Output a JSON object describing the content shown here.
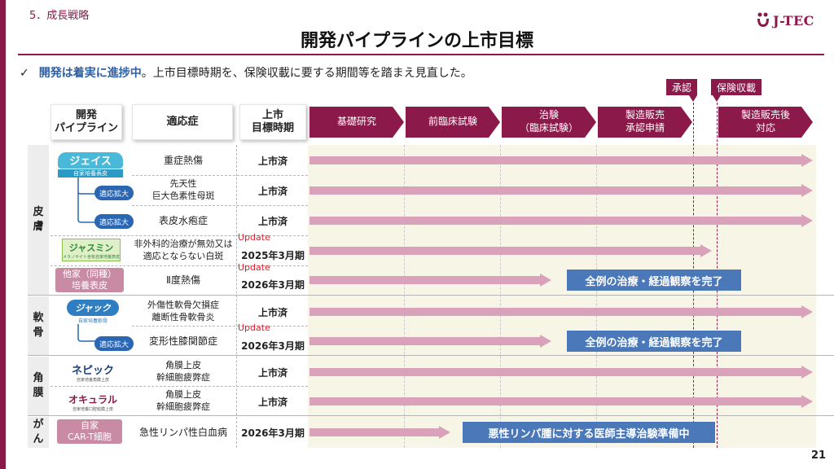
{
  "section": "5．成長戦略",
  "logo": "J-TEC",
  "title": "開発パイプラインの上市目標",
  "summary": {
    "check": "✓",
    "highlight": "開発は着実に進捗中",
    "rest": "。上市目標時期を、保険収載に要する期間等を踏まえ見直した。"
  },
  "callouts": {
    "approval": "承認",
    "insurance": "保険収載"
  },
  "headers": {
    "pipeline": "開発\nパイプライン",
    "indication": "適応症",
    "target": "上市\n目標時期"
  },
  "phases": [
    "基礎研究",
    "前臨床試験",
    "治験\n（臨床試験）",
    "製造販売\n承認申請",
    "製造販売後\n対応"
  ],
  "categories": [
    "皮\n膚",
    "軟\n骨",
    "角\n膜",
    "が\nん"
  ],
  "products": {
    "jace": "ジェイス",
    "jace_sub": "自家培養表皮",
    "jasmine": "ジャスミン",
    "jasmine_sub": "メラノサイト含有自家培養表皮",
    "other_epidermis": "他家（同種）\n培養表皮",
    "jack": "ジャック",
    "jack_sub": "自家培養軟骨",
    "nepic": "ネピック",
    "nepic_sub": "自家培養角膜上皮",
    "ocural": "オキュラル",
    "ocural_sub": "自家培養口腔粘膜上皮",
    "cart": "自家\nCAR-T細胞"
  },
  "expansion_label": "適応拡大",
  "rows": [
    {
      "indication": "重症熱傷",
      "target": "上市済",
      "update": "",
      "progress": 1.0,
      "status": ""
    },
    {
      "indication": "先天性\n巨大色素性母斑",
      "target": "上市済",
      "update": "",
      "progress": 1.0,
      "status": ""
    },
    {
      "indication": "表皮水疱症",
      "target": "上市済",
      "update": "",
      "progress": 1.0,
      "status": ""
    },
    {
      "indication": "非外科的治療が無効又は\n適応とならない白斑",
      "target": "2025年3月期",
      "update": "Update",
      "progress": 0.8,
      "status": ""
    },
    {
      "indication": "Ⅱ度熱傷",
      "target": "2026年3月期",
      "update": "Update",
      "progress": 0.48,
      "status": "全例の治療・経過観察を完了"
    },
    {
      "indication": "外傷性軟骨欠損症\n離断性骨軟骨炎",
      "target": "上市済",
      "update": "",
      "progress": 1.0,
      "status": ""
    },
    {
      "indication": "変形性膝関節症",
      "target": "2026年3月期",
      "update": "Update",
      "progress": 0.48,
      "status": "全例の治療・経過観察を完了"
    },
    {
      "indication": "角膜上皮\n幹細胞疲弊症",
      "target": "上市済",
      "update": "",
      "progress": 1.0,
      "status": ""
    },
    {
      "indication": "角膜上皮\n幹細胞疲弊症",
      "target": "上市済",
      "update": "",
      "progress": 1.0,
      "status": ""
    },
    {
      "indication": "急性リンパ性白血病",
      "target": "2026年3月期",
      "update": "",
      "progress": 0.28,
      "status": "悪性リンパ腫に対する医師主導治験準備中"
    }
  ],
  "page_number": "21"
}
